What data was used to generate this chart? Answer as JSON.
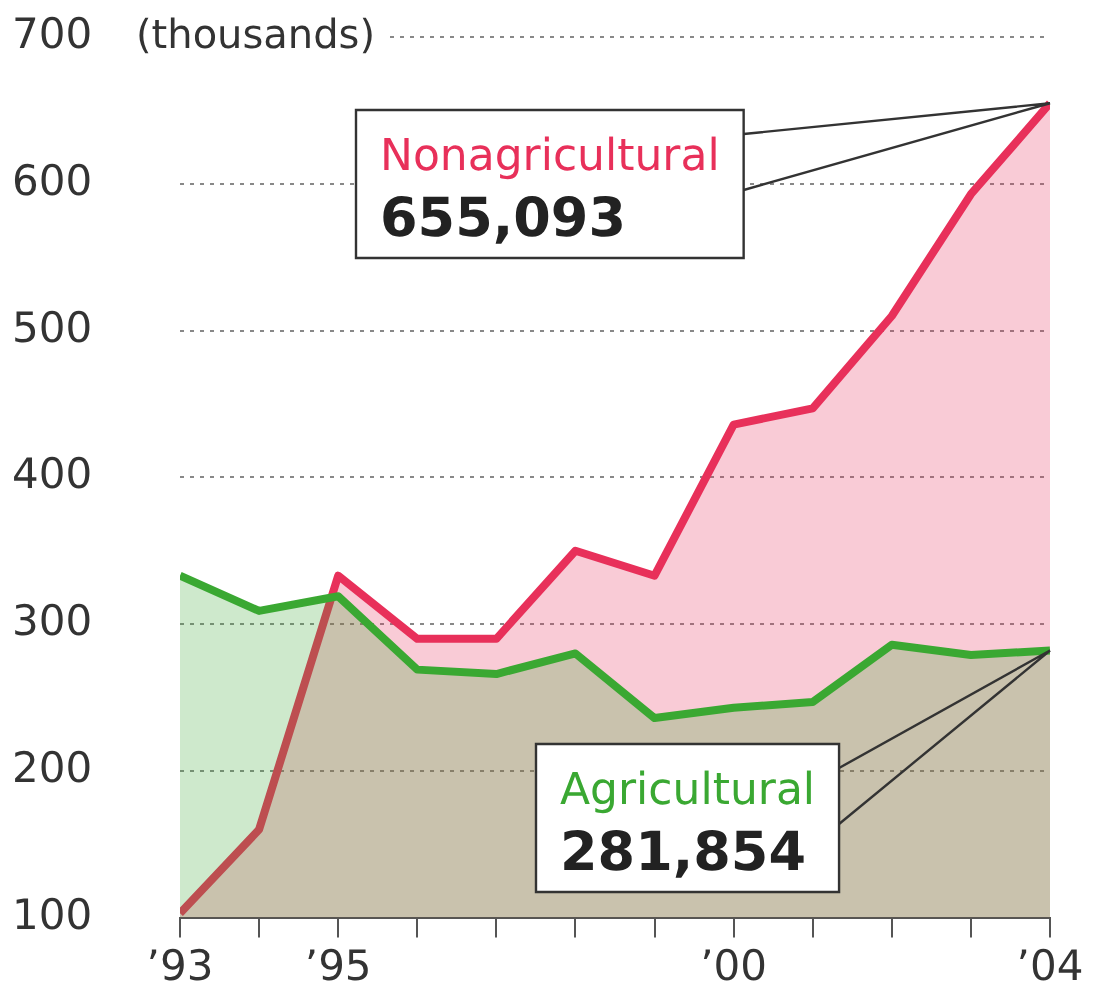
{
  "chart_data": {
    "type": "area",
    "ylabel": "(thousands)",
    "x": [
      1993,
      1994,
      1995,
      1996,
      1997,
      1998,
      1999,
      2000,
      2001,
      2002,
      2003,
      2004
    ],
    "xlim": [
      1993,
      2004
    ],
    "xticks": [
      {
        "value": 1993,
        "label": "’93"
      },
      {
        "value": 1994,
        "label": null
      },
      {
        "value": 1995,
        "label": "’95"
      },
      {
        "value": 1996,
        "label": null
      },
      {
        "value": 1997,
        "label": null
      },
      {
        "value": 1998,
        "label": null
      },
      {
        "value": 1999,
        "label": null
      },
      {
        "value": 2000,
        "label": "’00"
      },
      {
        "value": 2001,
        "label": null
      },
      {
        "value": 2002,
        "label": null
      },
      {
        "value": 2003,
        "label": null
      },
      {
        "value": 2004,
        "label": "’04"
      }
    ],
    "ylim": [
      100,
      700
    ],
    "yticks": [
      100,
      200,
      300,
      400,
      500,
      600,
      700
    ],
    "grid": "y",
    "series": [
      {
        "name": "Nonagricultural",
        "color": "#e8305a",
        "values": [
          103,
          160,
          333,
          290,
          290,
          350,
          333,
          436,
          447,
          510,
          593,
          655
        ]
      },
      {
        "name": "Agricultural",
        "color": "#3aa832",
        "values": [
          333,
          309,
          319,
          269,
          266,
          280,
          236,
          243,
          247,
          286,
          279,
          282
        ]
      }
    ],
    "annotations": [
      "655,093",
      "281,854"
    ]
  }
}
